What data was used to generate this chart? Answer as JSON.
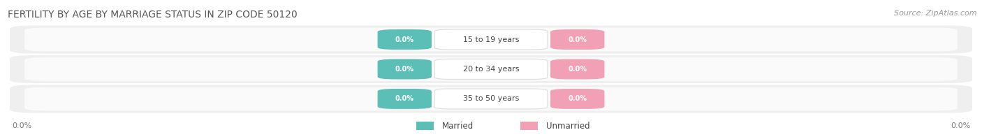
{
  "title": "FERTILITY BY AGE BY MARRIAGE STATUS IN ZIP CODE 50120",
  "source": "Source: ZipAtlas.com",
  "age_groups": [
    "15 to 19 years",
    "20 to 34 years",
    "35 to 50 years"
  ],
  "married_values": [
    "0.0%",
    "0.0%",
    "0.0%"
  ],
  "unmarried_values": [
    "0.0%",
    "0.0%",
    "0.0%"
  ],
  "married_color": "#5BBFB8",
  "unmarried_color": "#F2A0B5",
  "row_fill_light": "#F2F2F2",
  "row_fill_white": "#FFFFFF",
  "row_shadow": "#D8D8D8",
  "pill_label_bg": "#FFFFFF",
  "title_fontsize": 10,
  "source_fontsize": 8,
  "label_fontsize": 8,
  "pill_fontsize": 7,
  "legend_fontsize": 8.5,
  "axis_label_fontsize": 8,
  "background_color": "#FFFFFF",
  "title_color": "#555555",
  "source_color": "#999999",
  "axis_label_color": "#777777",
  "label_text_color": "#444444"
}
